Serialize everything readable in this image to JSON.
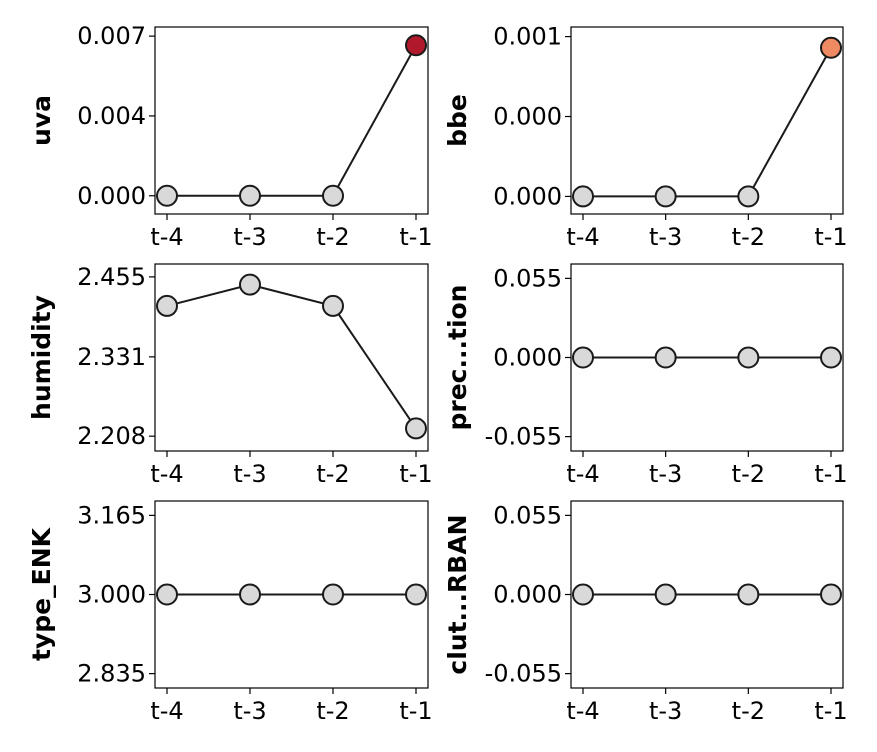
{
  "chart_data": [
    {
      "type": "line",
      "ylabel": "uva",
      "x": [
        "t-4",
        "t-3",
        "t-2",
        "t-1"
      ],
      "values": [
        0.0,
        0.0,
        0.0,
        0.0066
      ],
      "yticks": [
        "0.000",
        "0.004",
        "0.007"
      ],
      "ytick_values": [
        0.0,
        0.0035,
        0.007
      ],
      "ylim": [
        -0.0008,
        0.0074
      ],
      "point_colors": [
        "#d9d9d9",
        "#d9d9d9",
        "#d9d9d9",
        "#b2182b"
      ]
    },
    {
      "type": "line",
      "ylabel": "bbe",
      "x": [
        "t-4",
        "t-3",
        "t-2",
        "t-1"
      ],
      "values": [
        0.0,
        0.0,
        0.0,
        0.00093
      ],
      "yticks": [
        "0.000",
        "0.000",
        "0.001"
      ],
      "ytick_values": [
        0.0,
        0.0005,
        0.001
      ],
      "ylim": [
        -0.00011,
        0.00106
      ],
      "point_colors": [
        "#d9d9d9",
        "#d9d9d9",
        "#d9d9d9",
        "#ef8a62"
      ]
    },
    {
      "type": "line",
      "ylabel": "humidity",
      "x": [
        "t-4",
        "t-3",
        "t-2",
        "t-1"
      ],
      "values": [
        2.41,
        2.443,
        2.41,
        2.22
      ],
      "yticks": [
        "2.208",
        "2.331",
        "2.455"
      ],
      "ytick_values": [
        2.208,
        2.331,
        2.455
      ],
      "ylim": [
        2.185,
        2.475
      ],
      "point_colors": [
        "#d9d9d9",
        "#d9d9d9",
        "#d9d9d9",
        "#d9d9d9"
      ]
    },
    {
      "type": "line",
      "ylabel": "prec...tion",
      "x": [
        "t-4",
        "t-3",
        "t-2",
        "t-1"
      ],
      "values": [
        0.0,
        0.0,
        0.0,
        0.0
      ],
      "yticks": [
        "-0.055",
        "0.000",
        "0.055"
      ],
      "ytick_values": [
        -0.055,
        0.0,
        0.055
      ],
      "ylim": [
        -0.065,
        0.065
      ],
      "point_colors": [
        "#d9d9d9",
        "#d9d9d9",
        "#d9d9d9",
        "#d9d9d9"
      ]
    },
    {
      "type": "line",
      "ylabel": "type_ENK",
      "x": [
        "t-4",
        "t-3",
        "t-2",
        "t-1"
      ],
      "values": [
        3.0,
        3.0,
        3.0,
        3.0
      ],
      "yticks": [
        "2.835",
        "3.000",
        "3.165"
      ],
      "ytick_values": [
        2.835,
        3.0,
        3.165
      ],
      "ylim": [
        2.805,
        3.195
      ],
      "point_colors": [
        "#d9d9d9",
        "#d9d9d9",
        "#d9d9d9",
        "#d9d9d9"
      ]
    },
    {
      "type": "line",
      "ylabel": "clut...RBAN",
      "x": [
        "t-4",
        "t-3",
        "t-2",
        "t-1"
      ],
      "values": [
        0.0,
        0.0,
        0.0,
        0.0
      ],
      "yticks": [
        "-0.055",
        "0.000",
        "0.055"
      ],
      "ytick_values": [
        -0.055,
        0.0,
        0.055
      ],
      "ylim": [
        -0.065,
        0.065
      ],
      "point_colors": [
        "#d9d9d9",
        "#d9d9d9",
        "#d9d9d9",
        "#d9d9d9"
      ]
    }
  ]
}
